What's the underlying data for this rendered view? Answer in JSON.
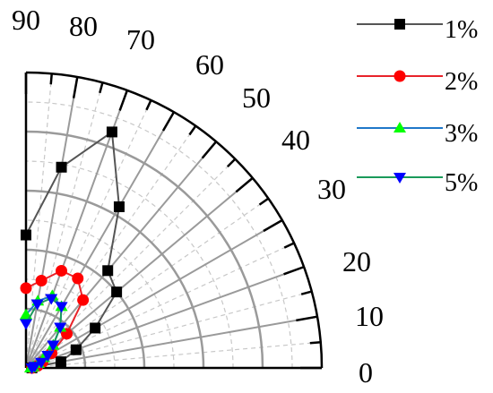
{
  "chart_data": {
    "type": "polar-line",
    "angular_axis": {
      "unit": "degrees",
      "range": [
        0,
        90
      ],
      "tick_labels": [
        "0",
        "10",
        "20",
        "30",
        "40",
        "50",
        "60",
        "70",
        "80",
        "90"
      ]
    },
    "radial_axis": {
      "range": [
        0,
        1
      ],
      "grid_rings": [
        0.2,
        0.4,
        0.6,
        0.8
      ],
      "tick_labels_shown": false
    },
    "grid": true,
    "legend_position": "top-right",
    "series": [
      {
        "name": "1%",
        "color": "#555555",
        "marker": "square",
        "marker_color": "#000000",
        "points": [
          {
            "angle": 0,
            "r": 0.02
          },
          {
            "angle": 10,
            "r": 0.12
          },
          {
            "angle": 20,
            "r": 0.18
          },
          {
            "angle": 30,
            "r": 0.27
          },
          {
            "angle": 40,
            "r": 0.4
          },
          {
            "angle": 50,
            "r": 0.43
          },
          {
            "angle": 60,
            "r": 0.63
          },
          {
            "angle": 70,
            "r": 0.85
          },
          {
            "angle": 80,
            "r": 0.69
          },
          {
            "angle": 90,
            "r": 0.45
          }
        ]
      },
      {
        "name": "2%",
        "color": "#e8232a",
        "marker": "circle",
        "marker_color": "#ff0000",
        "points": [
          {
            "angle": 0,
            "r": 0.02
          },
          {
            "angle": 10,
            "r": 0.04
          },
          {
            "angle": 20,
            "r": 0.06
          },
          {
            "angle": 30,
            "r": 0.1
          },
          {
            "angle": 40,
            "r": 0.18
          },
          {
            "angle": 50,
            "r": 0.3
          },
          {
            "angle": 60,
            "r": 0.35
          },
          {
            "angle": 70,
            "r": 0.35
          },
          {
            "angle": 80,
            "r": 0.3
          },
          {
            "angle": 90,
            "r": 0.27
          }
        ]
      },
      {
        "name": "3%",
        "color": "#1f77c9",
        "marker": "triangle-up",
        "marker_color": "#00ff00",
        "points": [
          {
            "angle": 0,
            "r": 0.015
          },
          {
            "angle": 10,
            "r": 0.025
          },
          {
            "angle": 20,
            "r": 0.045
          },
          {
            "angle": 30,
            "r": 0.07
          },
          {
            "angle": 40,
            "r": 0.12
          },
          {
            "angle": 50,
            "r": 0.18
          },
          {
            "angle": 60,
            "r": 0.24
          },
          {
            "angle": 70,
            "r": 0.26
          },
          {
            "angle": 80,
            "r": 0.23
          },
          {
            "angle": 90,
            "r": 0.18
          }
        ]
      },
      {
        "name": "5%",
        "color": "#1a9a5a",
        "marker": "triangle-down",
        "marker_color": "#0000ff",
        "points": [
          {
            "angle": 0,
            "r": 0.02
          },
          {
            "angle": 10,
            "r": 0.03
          },
          {
            "angle": 20,
            "r": 0.055
          },
          {
            "angle": 30,
            "r": 0.085
          },
          {
            "angle": 40,
            "r": 0.12
          },
          {
            "angle": 50,
            "r": 0.18
          },
          {
            "angle": 60,
            "r": 0.24
          },
          {
            "angle": 70,
            "r": 0.25
          },
          {
            "angle": 80,
            "r": 0.22
          },
          {
            "angle": 90,
            "r": 0.15
          }
        ]
      }
    ]
  }
}
